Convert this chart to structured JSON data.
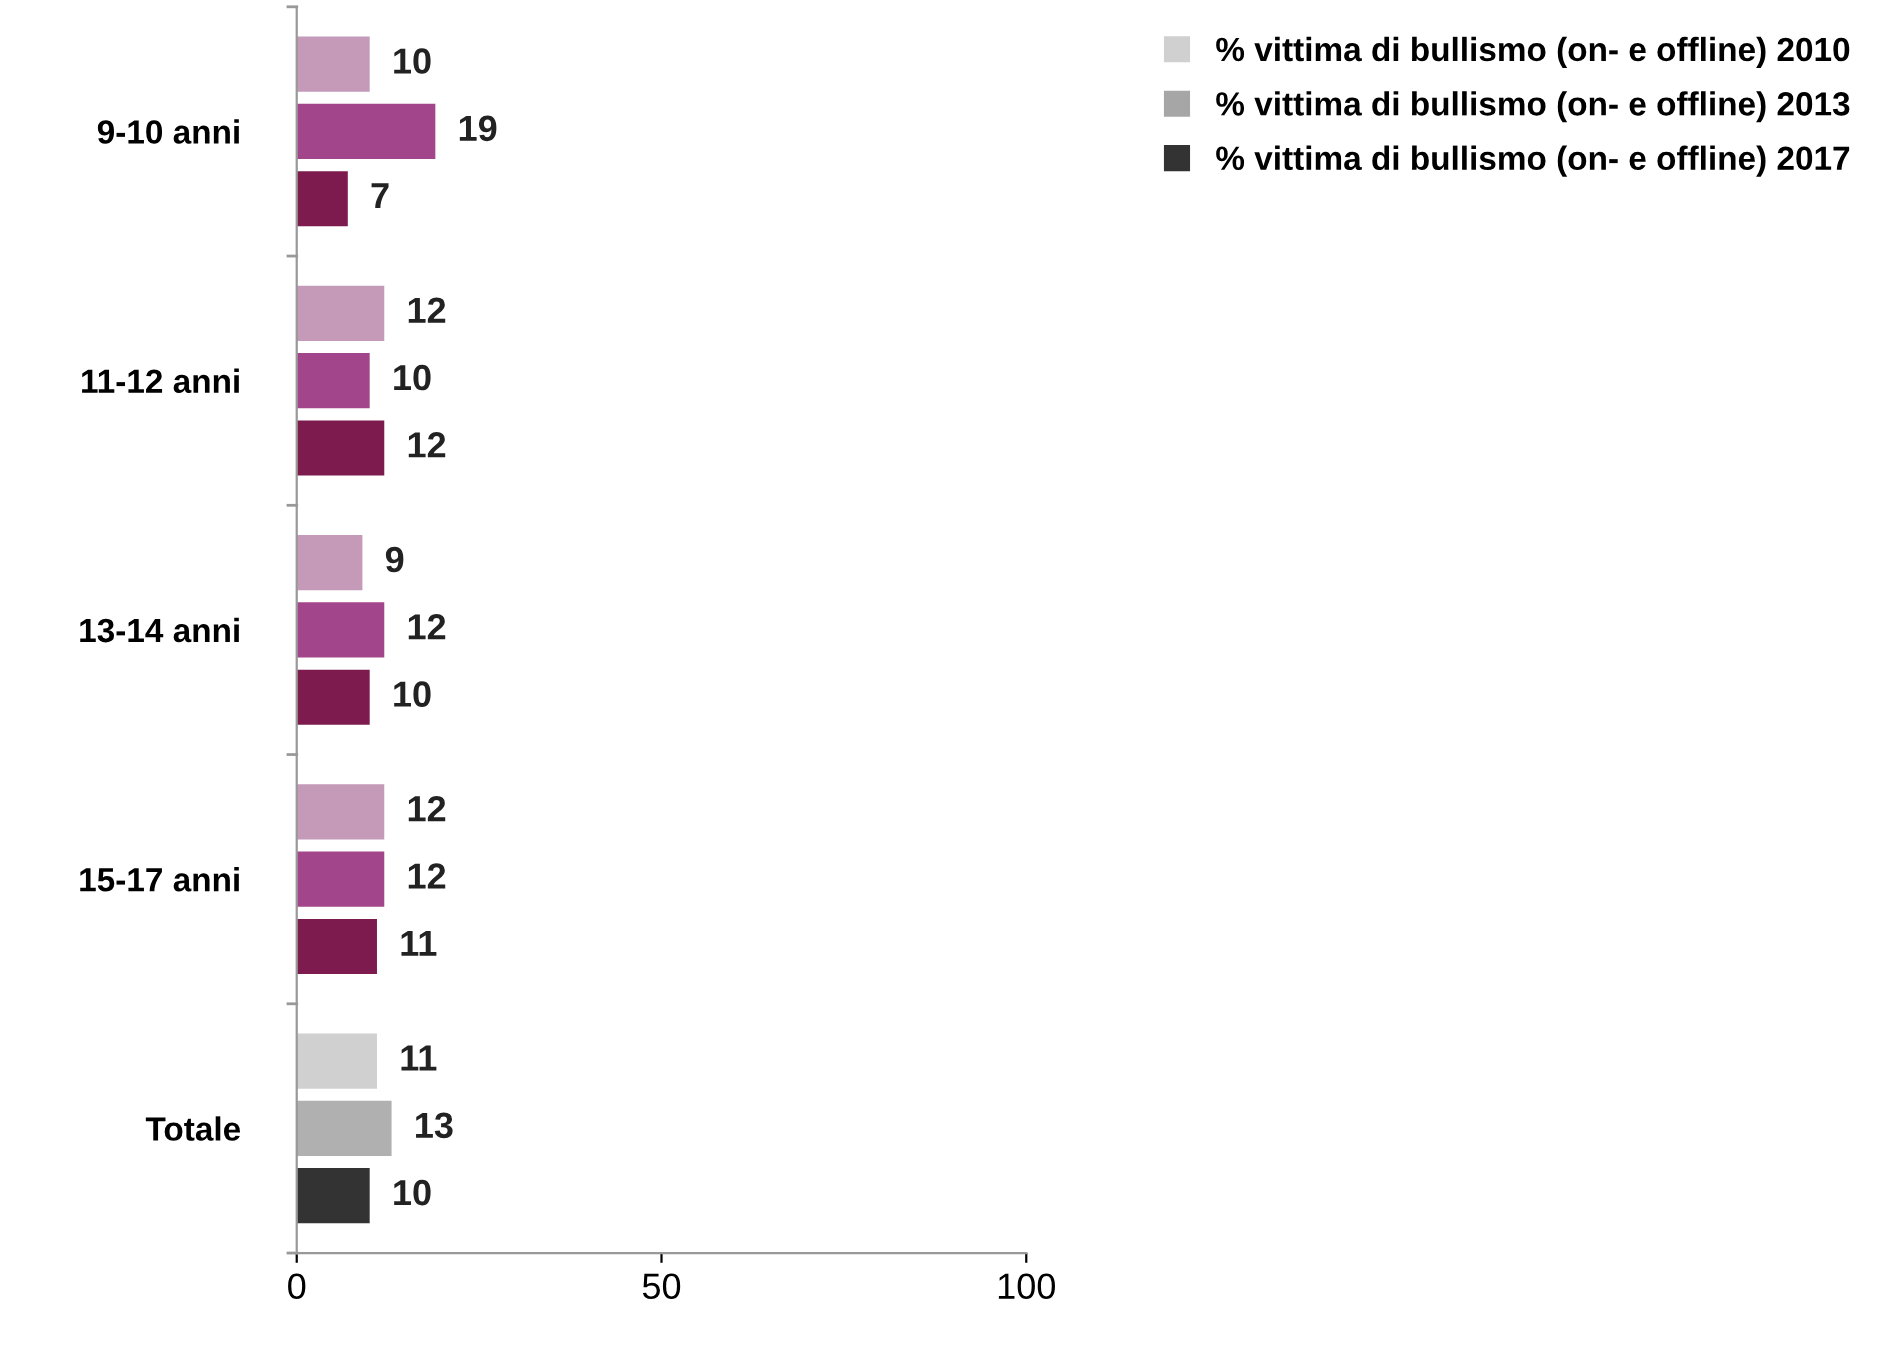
{
  "chart_data": {
    "type": "bar",
    "orientation": "horizontal",
    "categories": [
      "9-10 anni",
      "11-12 anni",
      "13-14 anni",
      "15-17 anni",
      "Totale"
    ],
    "series": [
      {
        "name": "% vittima di bullismo (on- e offline) 2010",
        "color": "#d0d0d0",
        "colors": [
          "#c49ab8",
          "#c49ab8",
          "#c49ab8",
          "#c49ab8",
          "#d0d0d0"
        ],
        "values": [
          10,
          12,
          9,
          12,
          11
        ]
      },
      {
        "name": "% vittima di bullismo (on- e offline) 2013",
        "color": "#a6a6a6",
        "colors": [
          "#a3458a",
          "#a3458a",
          "#a3458a",
          "#a3458a",
          "#b0b0b0"
        ],
        "values": [
          19,
          10,
          12,
          12,
          13
        ]
      },
      {
        "name": "% vittima di bullismo (on- e offline) 2017",
        "color": "#333333",
        "colors": [
          "#7d1a4e",
          "#7d1a4e",
          "#7d1a4e",
          "#7d1a4e",
          "#333333"
        ],
        "values": [
          7,
          12,
          10,
          11,
          10
        ]
      }
    ],
    "xlim": [
      0,
      100
    ],
    "xticks": [
      0,
      50,
      100
    ],
    "data_labels": true,
    "grid": false,
    "legend": "top right"
  }
}
